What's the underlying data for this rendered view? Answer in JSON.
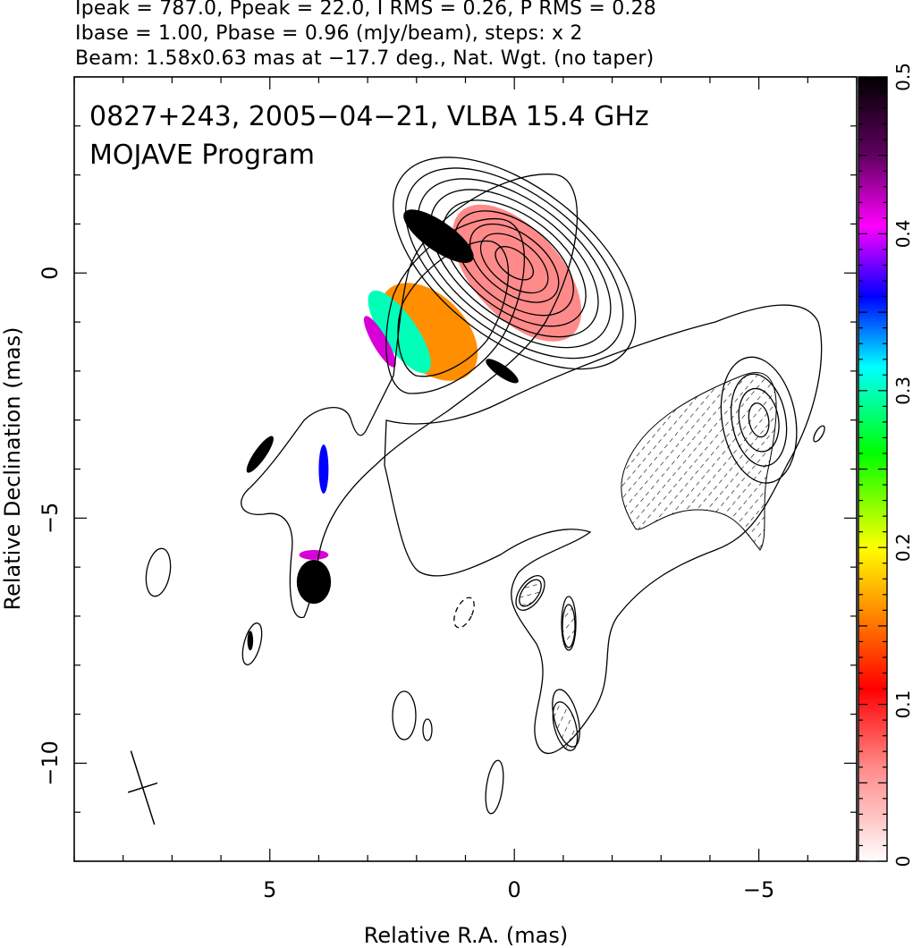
{
  "header": {
    "line1": "Ipeak = 787.0, Ppeak = 22.0, I RMS = 0.26, P RMS = 0.28",
    "line2": "Ibase = 1.00, Pbase = 0.96 (mJy/beam), steps: x 2",
    "line3": "Beam: 1.58x0.63 mas at −17.7 deg., Nat. Wgt. (no taper)"
  },
  "chart_data": {
    "type": "heatmap",
    "title": "0827+243, 2005−04−21, VLBA 15.4 GHz",
    "subtitle": "MOJAVE Program",
    "xlabel": "Relative R.A. (mas)",
    "ylabel": "Relative Declination (mas)",
    "xlim": [
      9,
      -7
    ],
    "ylim": [
      -12,
      4
    ],
    "x_ticks": [
      {
        "value": 5,
        "label": "5"
      },
      {
        "value": 0,
        "label": "0"
      },
      {
        "value": -5,
        "label": "−5"
      }
    ],
    "y_ticks": [
      {
        "value": 0,
        "label": "0"
      },
      {
        "value": -5,
        "label": "−5"
      },
      {
        "value": -10,
        "label": "−10"
      }
    ],
    "colorbar": {
      "range": [
        0,
        0.5
      ],
      "ticks": [
        {
          "value": 0,
          "label": "0"
        },
        {
          "value": 0.1,
          "label": "0.1"
        },
        {
          "value": 0.2,
          "label": "0.2"
        },
        {
          "value": 0.3,
          "label": "0.3"
        },
        {
          "value": 0.4,
          "label": "0.4"
        },
        {
          "value": 0.5,
          "label": "0.5"
        }
      ],
      "colors": [
        "#ffffff",
        "#ff8a8a",
        "#ff0000",
        "#ff8000",
        "#ffff00",
        "#00ff00",
        "#00ffff",
        "#0000ff",
        "#ff00ff",
        "#000000"
      ]
    },
    "beam": {
      "major_mas": 1.58,
      "minor_mas": 0.63,
      "pa_deg": -17.7,
      "x": 7.6,
      "y": -10.5
    },
    "core": {
      "x": 0.0,
      "y": 0.2,
      "pa_deg": -52,
      "contour_semi_axes": [
        [
          0.25,
          0.45
        ],
        [
          0.45,
          0.8
        ],
        [
          0.6,
          1.05
        ],
        [
          0.8,
          1.4
        ],
        [
          0.95,
          1.7
        ],
        [
          1.1,
          2.0
        ],
        [
          1.25,
          2.3
        ],
        [
          1.4,
          2.6
        ],
        [
          1.55,
          2.9
        ]
      ]
    },
    "jet_knot": {
      "x": -5.0,
      "y": -3.0,
      "pa_deg": -10,
      "contour_semi_axes": [
        [
          0.2,
          0.35
        ],
        [
          0.4,
          0.65
        ],
        [
          0.55,
          0.95
        ],
        [
          0.75,
          1.3
        ]
      ]
    },
    "fractional_pol_regions": [
      {
        "x": -0.05,
        "y": 0.0,
        "rx": 0.9,
        "ry": 1.7,
        "pa_deg": -42,
        "value": 0.06
      },
      {
        "x": 1.75,
        "y": -1.2,
        "rx": 0.75,
        "ry": 1.2,
        "pa_deg": -45,
        "value": 0.16
      },
      {
        "x": 2.35,
        "y": -1.2,
        "rx": 0.35,
        "ry": 1.0,
        "pa_deg": -35,
        "value": 0.3
      },
      {
        "x": 2.75,
        "y": -1.4,
        "rx": 0.15,
        "ry": 0.6,
        "pa_deg": -30,
        "value": 0.42
      },
      {
        "x": 1.55,
        "y": 0.75,
        "rx": 0.3,
        "ry": 0.85,
        "pa_deg": -55,
        "value": 0.5
      },
      {
        "x": 0.25,
        "y": -2.0,
        "rx": 0.12,
        "ry": 0.4,
        "pa_deg": -55,
        "value": 0.5
      },
      {
        "x": 3.9,
        "y": -4.0,
        "rx": 0.1,
        "ry": 0.5,
        "pa_deg": 0,
        "value": 0.36
      },
      {
        "x": 4.1,
        "y": -6.3,
        "rx": 0.35,
        "ry": 0.45,
        "pa_deg": 0,
        "value": 0.5
      },
      {
        "x": 4.1,
        "y": -5.75,
        "rx": 0.3,
        "ry": 0.1,
        "pa_deg": 0,
        "value": 0.42
      },
      {
        "x": 5.2,
        "y": -3.7,
        "rx": 0.12,
        "ry": 0.45,
        "pa_deg": 35,
        "value": 0.5
      },
      {
        "x": 5.4,
        "y": -7.5,
        "rx": 0.06,
        "ry": 0.2,
        "pa_deg": 0,
        "value": 0.5
      }
    ]
  }
}
